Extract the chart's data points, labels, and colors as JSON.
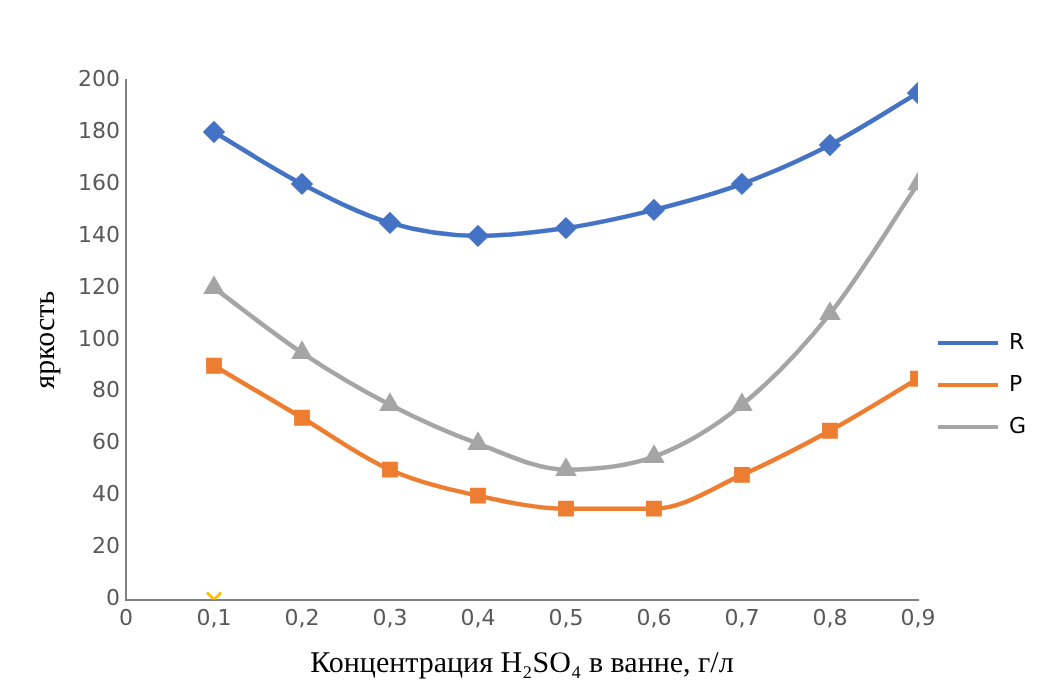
{
  "chart_data": {
    "type": "line",
    "xlabel": "Концентрация H₂SO₄ в ванне, г/л",
    "ylabel": "яркость",
    "xlim": [
      0,
      0.9
    ],
    "xticks": [
      0,
      {
        "value": 0.1,
        "label": "0,1"
      },
      {
        "value": 0.2,
        "label": "0,2"
      },
      {
        "value": 0.3,
        "label": "0,3"
      },
      {
        "value": 0.4,
        "label": "0,4"
      },
      {
        "value": 0.5,
        "label": "0,5"
      },
      {
        "value": 0.6,
        "label": "0,6"
      },
      {
        "value": 0.7,
        "label": "0,7"
      },
      {
        "value": 0.8,
        "label": "0,8"
      },
      {
        "value": 0.9,
        "label": "0,9"
      }
    ],
    "ylim": [
      0,
      200
    ],
    "yticks": [
      0,
      20,
      40,
      60,
      80,
      100,
      120,
      140,
      160,
      180,
      200
    ],
    "grid": false,
    "legend": "right",
    "series": [
      {
        "name": "R",
        "color": "#4472c4",
        "marker": "diamond",
        "x": [
          0.1,
          0.2,
          0.3,
          0.4,
          0.5,
          0.6,
          0.7,
          0.8,
          0.9
        ],
        "values": [
          180,
          160,
          145,
          140,
          143,
          150,
          160,
          175,
          195
        ]
      },
      {
        "name": "P",
        "color": "#ed7d31",
        "marker": "square",
        "x": [
          0.1,
          0.2,
          0.3,
          0.4,
          0.5,
          0.6,
          0.7,
          0.8,
          0.9
        ],
        "values": [
          90,
          70,
          50,
          40,
          35,
          35,
          48,
          65,
          85
        ]
      },
      {
        "name": "G",
        "color": "#a5a5a5",
        "marker": "triangle",
        "x": [
          0.1,
          0.2,
          0.3,
          0.4,
          0.5,
          0.6,
          0.7,
          0.8,
          0.9
        ],
        "values": [
          120,
          95,
          75,
          60,
          50,
          55,
          75,
          110,
          160
        ]
      },
      {
        "type": "scatter",
        "color": "#ffc000",
        "marker": "cross",
        "x": [
          0.1
        ],
        "values": [
          0
        ]
      }
    ]
  }
}
